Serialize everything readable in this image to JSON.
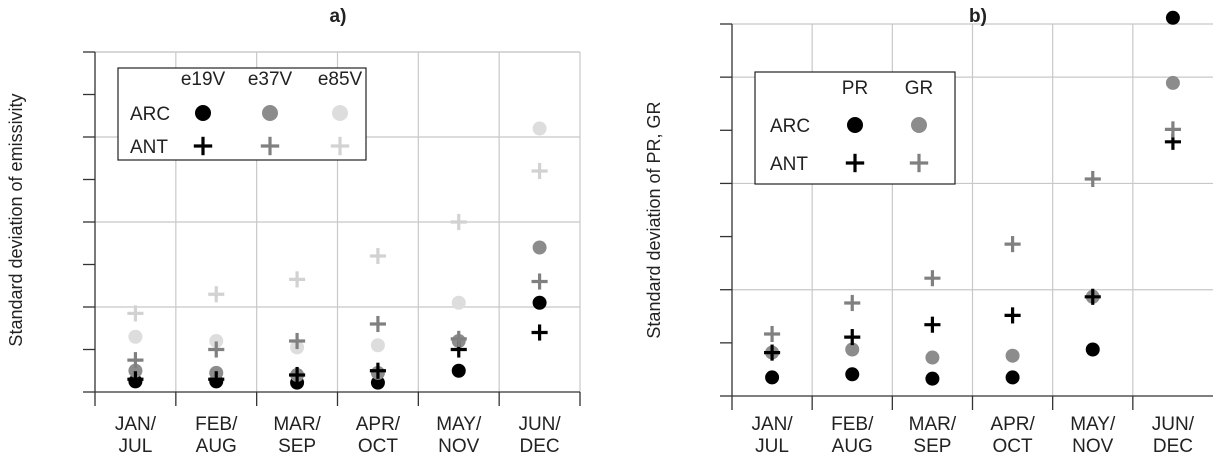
{
  "chart_data": [
    {
      "panel_label": "a)",
      "type": "scatter",
      "ylabel": "Standard deviation of emissivity",
      "categories": [
        "JAN/\nJUL",
        "FEB/\nAUG",
        "MAR/\nSEP",
        "APR/\nOCT",
        "MAY/\nNOV",
        "JUN/\nDEC"
      ],
      "ylim": [
        0,
        8
      ],
      "grid": true,
      "legend": {
        "placement": "top-left",
        "columns": [
          "e19V",
          "e37V",
          "e85V"
        ],
        "rows": [
          "ARC",
          "ANT"
        ]
      },
      "series": [
        {
          "name": "ARC e19V",
          "marker": "dot",
          "color": "#000000",
          "values": [
            0.25,
            0.25,
            0.22,
            0.22,
            0.5,
            2.1
          ]
        },
        {
          "name": "ARC e37V",
          "marker": "dot",
          "color": "#8c8c8c",
          "values": [
            0.5,
            0.45,
            0.4,
            0.45,
            1.2,
            3.4
          ]
        },
        {
          "name": "ARC e85V",
          "marker": "dot",
          "color": "#dddddd",
          "values": [
            1.3,
            1.2,
            1.05,
            1.1,
            2.1,
            6.2
          ]
        },
        {
          "name": "ANT e19V",
          "marker": "plus",
          "color": "#000000",
          "values": [
            0.3,
            0.3,
            0.4,
            0.5,
            1.0,
            1.4
          ]
        },
        {
          "name": "ANT e37V",
          "marker": "plus",
          "color": "#808080",
          "values": [
            0.75,
            1.0,
            1.2,
            1.6,
            1.25,
            2.6
          ]
        },
        {
          "name": "ANT e85V",
          "marker": "plus",
          "color": "#d2d2d2",
          "values": [
            1.85,
            2.3,
            2.65,
            3.2,
            4.0,
            5.2
          ]
        }
      ]
    },
    {
      "panel_label": "b)",
      "type": "scatter",
      "ylabel": "Standard deviation of PR, GR",
      "categories": [
        "JAN/\nJUL",
        "FEB/\nAUG",
        "MAR/\nSEP",
        "APR/\nOCT",
        "MAY/\nNOV",
        "JUN/\nDEC"
      ],
      "ylim": [
        0,
        6
      ],
      "grid": true,
      "legend": {
        "placement": "top-left",
        "columns": [
          "PR",
          "GR"
        ],
        "rows": [
          "ARC",
          "ANT"
        ]
      },
      "series": [
        {
          "name": "ARC PR",
          "marker": "dot",
          "color": "#000000",
          "values": [
            0.3,
            0.35,
            0.28,
            0.3,
            0.75,
            6.1
          ]
        },
        {
          "name": "ARC GR",
          "marker": "dot",
          "color": "#8c8c8c",
          "values": [
            0.7,
            0.75,
            0.62,
            0.65,
            1.6,
            5.05
          ]
        },
        {
          "name": "ANT PR",
          "marker": "plus",
          "color": "#000000",
          "values": [
            0.7,
            0.95,
            1.15,
            1.3,
            1.6,
            4.1
          ]
        },
        {
          "name": "ANT GR",
          "marker": "plus",
          "color": "#808080",
          "values": [
            1.0,
            1.5,
            1.9,
            2.45,
            3.5,
            4.3
          ]
        }
      ]
    }
  ]
}
